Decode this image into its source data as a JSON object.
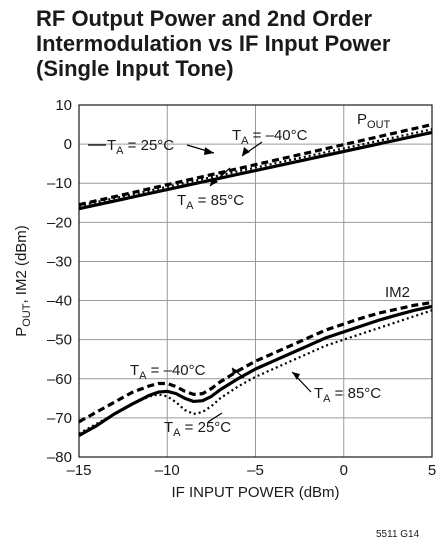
{
  "chart_data": {
    "type": "line",
    "title": [
      "RF Output Power and 2nd Order",
      "Intermodulation vs IF Input Power",
      "(Single Input Tone)"
    ],
    "xlabel": "IF INPUT POWER (dBm)",
    "ylabel": {
      "p": "P",
      "sub": "OUT",
      "rest": ", IM2 (dBm)"
    },
    "xlim": [
      -15,
      5
    ],
    "ylim": [
      -80,
      10
    ],
    "xticks": [
      -15,
      -10,
      -5,
      0,
      5
    ],
    "xtick_labels": [
      "–15",
      "–10",
      "–5",
      "0",
      "5"
    ],
    "yticks": [
      10,
      0,
      -10,
      -20,
      -30,
      -40,
      -50,
      -60,
      -70,
      -80
    ],
    "ytick_labels": [
      "10",
      "0",
      "–10",
      "–20",
      "–30",
      "–40",
      "–50",
      "–60",
      "–70",
      "–80"
    ],
    "grid": true,
    "series": [
      {
        "group": "POUT",
        "temp": "25°C",
        "style": "solid",
        "x": [
          -15,
          5
        ],
        "y": [
          -16.5,
          3
        ]
      },
      {
        "group": "POUT",
        "temp": "-40°C",
        "style": "dashed",
        "x": [
          -15,
          5
        ],
        "y": [
          -15.5,
          5
        ]
      },
      {
        "group": "POUT",
        "temp": "85°C",
        "style": "dotted",
        "x": [
          -15,
          5
        ],
        "y": [
          -15.8,
          3.8
        ]
      },
      {
        "group": "IM2",
        "temp": "25°C",
        "style": "dotted",
        "x": [
          -15,
          -14,
          -13,
          -12,
          -11,
          -10.5,
          -10,
          -9.5,
          -9,
          -8.5,
          -8,
          -7.5,
          -7,
          -6,
          -5,
          -4,
          -3,
          -2,
          -1,
          0,
          1,
          2,
          3,
          4,
          5
        ],
        "y": [
          -74,
          -71.5,
          -69,
          -66.5,
          -64.5,
          -64,
          -64.5,
          -66,
          -68,
          -69,
          -68.5,
          -67,
          -65,
          -62,
          -59.5,
          -57.5,
          -55.5,
          -53.5,
          -51.5,
          -50,
          -48.5,
          -47,
          -45.5,
          -44,
          -42.5
        ]
      },
      {
        "group": "IM2",
        "temp": "-40°C",
        "style": "dashed",
        "x": [
          -15,
          -14,
          -13,
          -12,
          -11,
          -10.5,
          -10,
          -9.5,
          -9,
          -8.5,
          -8,
          -7.5,
          -7,
          -6,
          -5,
          -4,
          -3,
          -2,
          -1,
          0,
          1,
          2,
          3,
          4,
          5
        ],
        "y": [
          -71,
          -68.5,
          -66,
          -63.5,
          -61.8,
          -61.2,
          -61.2,
          -62,
          -63.2,
          -64,
          -63.8,
          -62.5,
          -60.8,
          -58,
          -55.5,
          -53.5,
          -51.5,
          -49.5,
          -47.5,
          -46,
          -44.5,
          -43.2,
          -42.2,
          -41.2,
          -40.5
        ]
      },
      {
        "group": "IM2",
        "temp": "85°C",
        "style": "solid",
        "x": [
          -15,
          -14,
          -13,
          -12,
          -11,
          -10.5,
          -10,
          -9.5,
          -9,
          -8.5,
          -8,
          -7.5,
          -7,
          -6,
          -5,
          -4,
          -3,
          -2,
          -1,
          0,
          1,
          2,
          3,
          4,
          5
        ],
        "y": [
          -74.5,
          -72,
          -69,
          -66.5,
          -64.2,
          -63.4,
          -63.2,
          -63.8,
          -65,
          -65.8,
          -65.6,
          -64.5,
          -62.8,
          -60,
          -57.5,
          -55.5,
          -53.5,
          -51.5,
          -49.5,
          -48,
          -46.5,
          -45,
          -43.7,
          -42.5,
          -41.5
        ]
      }
    ],
    "annotations": [
      {
        "kind": "sub",
        "main": "P",
        "sub": "OUT",
        "rest": ""
      },
      {
        "kind": "temp",
        "main": "T",
        "sub": "A",
        "rest": " = 25°C"
      },
      {
        "kind": "temp",
        "main": "T",
        "sub": "A",
        "rest": " = –40°C"
      },
      {
        "kind": "temp",
        "main": "T",
        "sub": "A",
        "rest": " = 85°C"
      },
      {
        "kind": "plain",
        "text": "IM2"
      },
      {
        "kind": "temp",
        "main": "T",
        "sub": "A",
        "rest": " = –40°C"
      },
      {
        "kind": "temp",
        "main": "T",
        "sub": "A",
        "rest": " = 85°C"
      },
      {
        "kind": "temp",
        "main": "T",
        "sub": "A",
        "rest": " = 25°C"
      }
    ],
    "figure_code": "5511 G14"
  }
}
